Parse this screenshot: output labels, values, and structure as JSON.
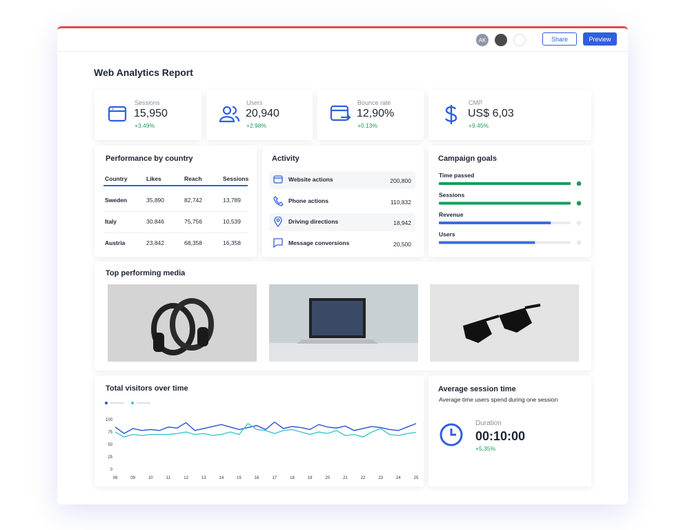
{
  "header": {
    "avatar": "AK",
    "share": "Share",
    "preview": "Preview"
  },
  "title": "Web Analytics Report",
  "kpis": [
    {
      "label": "Sessions",
      "value": "15,950",
      "change": "+3.49%"
    },
    {
      "label": "Users",
      "value": "20,940",
      "change": "+2.98%"
    },
    {
      "label": "Bounce rate",
      "value": "12,90%",
      "change": "+0.13%"
    },
    {
      "label": "CMP",
      "value": "US$ 6,03",
      "change": "+9.45%"
    }
  ],
  "performance": {
    "title": "Performance by country",
    "columns": [
      "Country",
      "Likes",
      "Reach",
      "Sessions"
    ],
    "rows": [
      [
        "Sweden",
        "35,890",
        "82,742",
        "13,789"
      ],
      [
        "Italy",
        "30,846",
        "75,756",
        "10,539"
      ],
      [
        "Austria",
        "23,842",
        "68,358",
        "16,358"
      ]
    ]
  },
  "activity": {
    "title": "Activity",
    "items": [
      {
        "label": "Website actions",
        "value": "200,800"
      },
      {
        "label": "Phone actions",
        "value": "110,832"
      },
      {
        "label": "Driving directions",
        "value": "18,942"
      },
      {
        "label": "Message conversions",
        "value": "20,500"
      }
    ]
  },
  "goals": {
    "title": "Campaign goals",
    "items": [
      {
        "label": "Time passed",
        "progress": 100
      },
      {
        "label": "Sessions",
        "progress": 100
      },
      {
        "label": "Revenue",
        "progress": 85
      },
      {
        "label": "Users",
        "progress": 73
      }
    ]
  },
  "media": {
    "title": "Top performing media"
  },
  "visitors": {
    "type": "line",
    "title": "Total visitors over time",
    "categories": [
      "08",
      null,
      "09",
      null,
      "10",
      null,
      "11",
      null,
      "12",
      null,
      "13",
      null,
      "14",
      null,
      "15",
      null,
      "16",
      null,
      "17",
      null,
      "18",
      null,
      "19",
      null,
      "20",
      null,
      "21",
      null,
      "22",
      null,
      "23",
      null,
      "24",
      null,
      "25"
    ],
    "ylim": [
      0,
      100
    ],
    "yticks": [
      0,
      25,
      50,
      75,
      100
    ],
    "series": [
      {
        "color": "#2a4fd6",
        "values": [
          85,
          72,
          82,
          78,
          80,
          78,
          85,
          83,
          94,
          78,
          82,
          86,
          90,
          85,
          80,
          84,
          88,
          80,
          95,
          82,
          86,
          84,
          80,
          90,
          85,
          83,
          87,
          78,
          82,
          86,
          84,
          80,
          78,
          85,
          92
        ]
      },
      {
        "color": "#3cc6cf",
        "values": [
          75,
          65,
          70,
          68,
          70,
          70,
          70,
          72,
          75,
          70,
          72,
          68,
          70,
          75,
          70,
          92,
          80,
          78,
          72,
          78,
          80,
          75,
          70,
          75,
          72,
          78,
          68,
          70,
          65,
          75,
          82,
          70,
          68,
          72,
          74
        ]
      }
    ]
  },
  "session": {
    "title": "Average session time",
    "subtitle": "Average time users spend during one session",
    "label": "Duration",
    "value": "00:10:00",
    "change": "+5.35%"
  }
}
